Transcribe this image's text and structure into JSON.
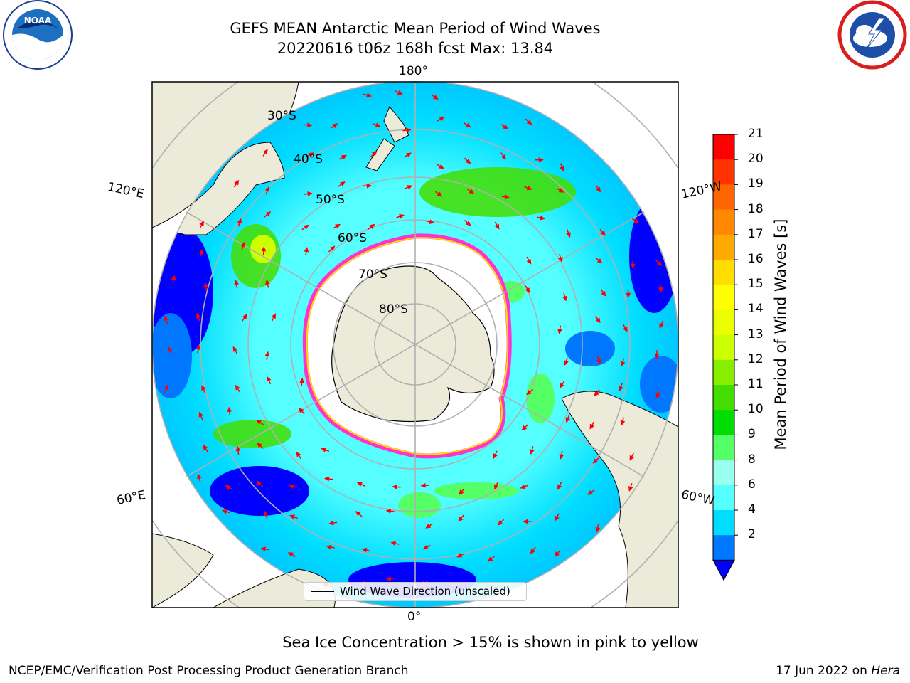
{
  "title": {
    "line1": "GEFS MEAN Antarctic Mean Period of Wind Waves",
    "line2": "20220616 t06z 168h fcst   Max: 13.84"
  },
  "map": {
    "projection": "south-polar-stereographic",
    "longitude_labels": {
      "top": "180°",
      "bottom": "0°",
      "left_upper": "120°E",
      "left_lower": "60°E",
      "right_upper": "120°W",
      "right_lower": "60°W"
    },
    "latitude_labels": [
      "30°S",
      "40°S",
      "50°S",
      "60°S",
      "70°S",
      "80°S"
    ],
    "legend": "Wind Wave Direction (unscaled)",
    "colors": {
      "land": "#ecebd9",
      "sea_ice_interior": "#ffffff",
      "ice_edge": "#ff33cc",
      "arrows": "#ff0000"
    }
  },
  "colorbar": {
    "label": "Mean Period of Wind Waves [s]",
    "ticks": [
      "21",
      "20",
      "19",
      "18",
      "17",
      "16",
      "15",
      "14",
      "13",
      "12",
      "11",
      "10",
      "9",
      "8",
      "6",
      "4",
      "2"
    ],
    "colors": [
      "#ff0000",
      "#ff3300",
      "#ff6600",
      "#ff8800",
      "#ffaa00",
      "#ffdd00",
      "#ffff00",
      "#ecff00",
      "#ccff00",
      "#88ee00",
      "#44dd00",
      "#00dd00",
      "#55ff66",
      "#99ffee",
      "#55ffff",
      "#00ddff",
      "#0077ff",
      "#0000ff"
    ]
  },
  "subtitle": "Sea Ice Concentration > 15% is shown in pink to yellow",
  "footer": {
    "left": "NCEP/EMC/Verification Post Processing Product Generation Branch",
    "right_prefix": "17 Jun 2022 on ",
    "right_host": "Hera"
  },
  "logos": {
    "left": "noaa-logo",
    "right": "national-weather-service-logo"
  }
}
